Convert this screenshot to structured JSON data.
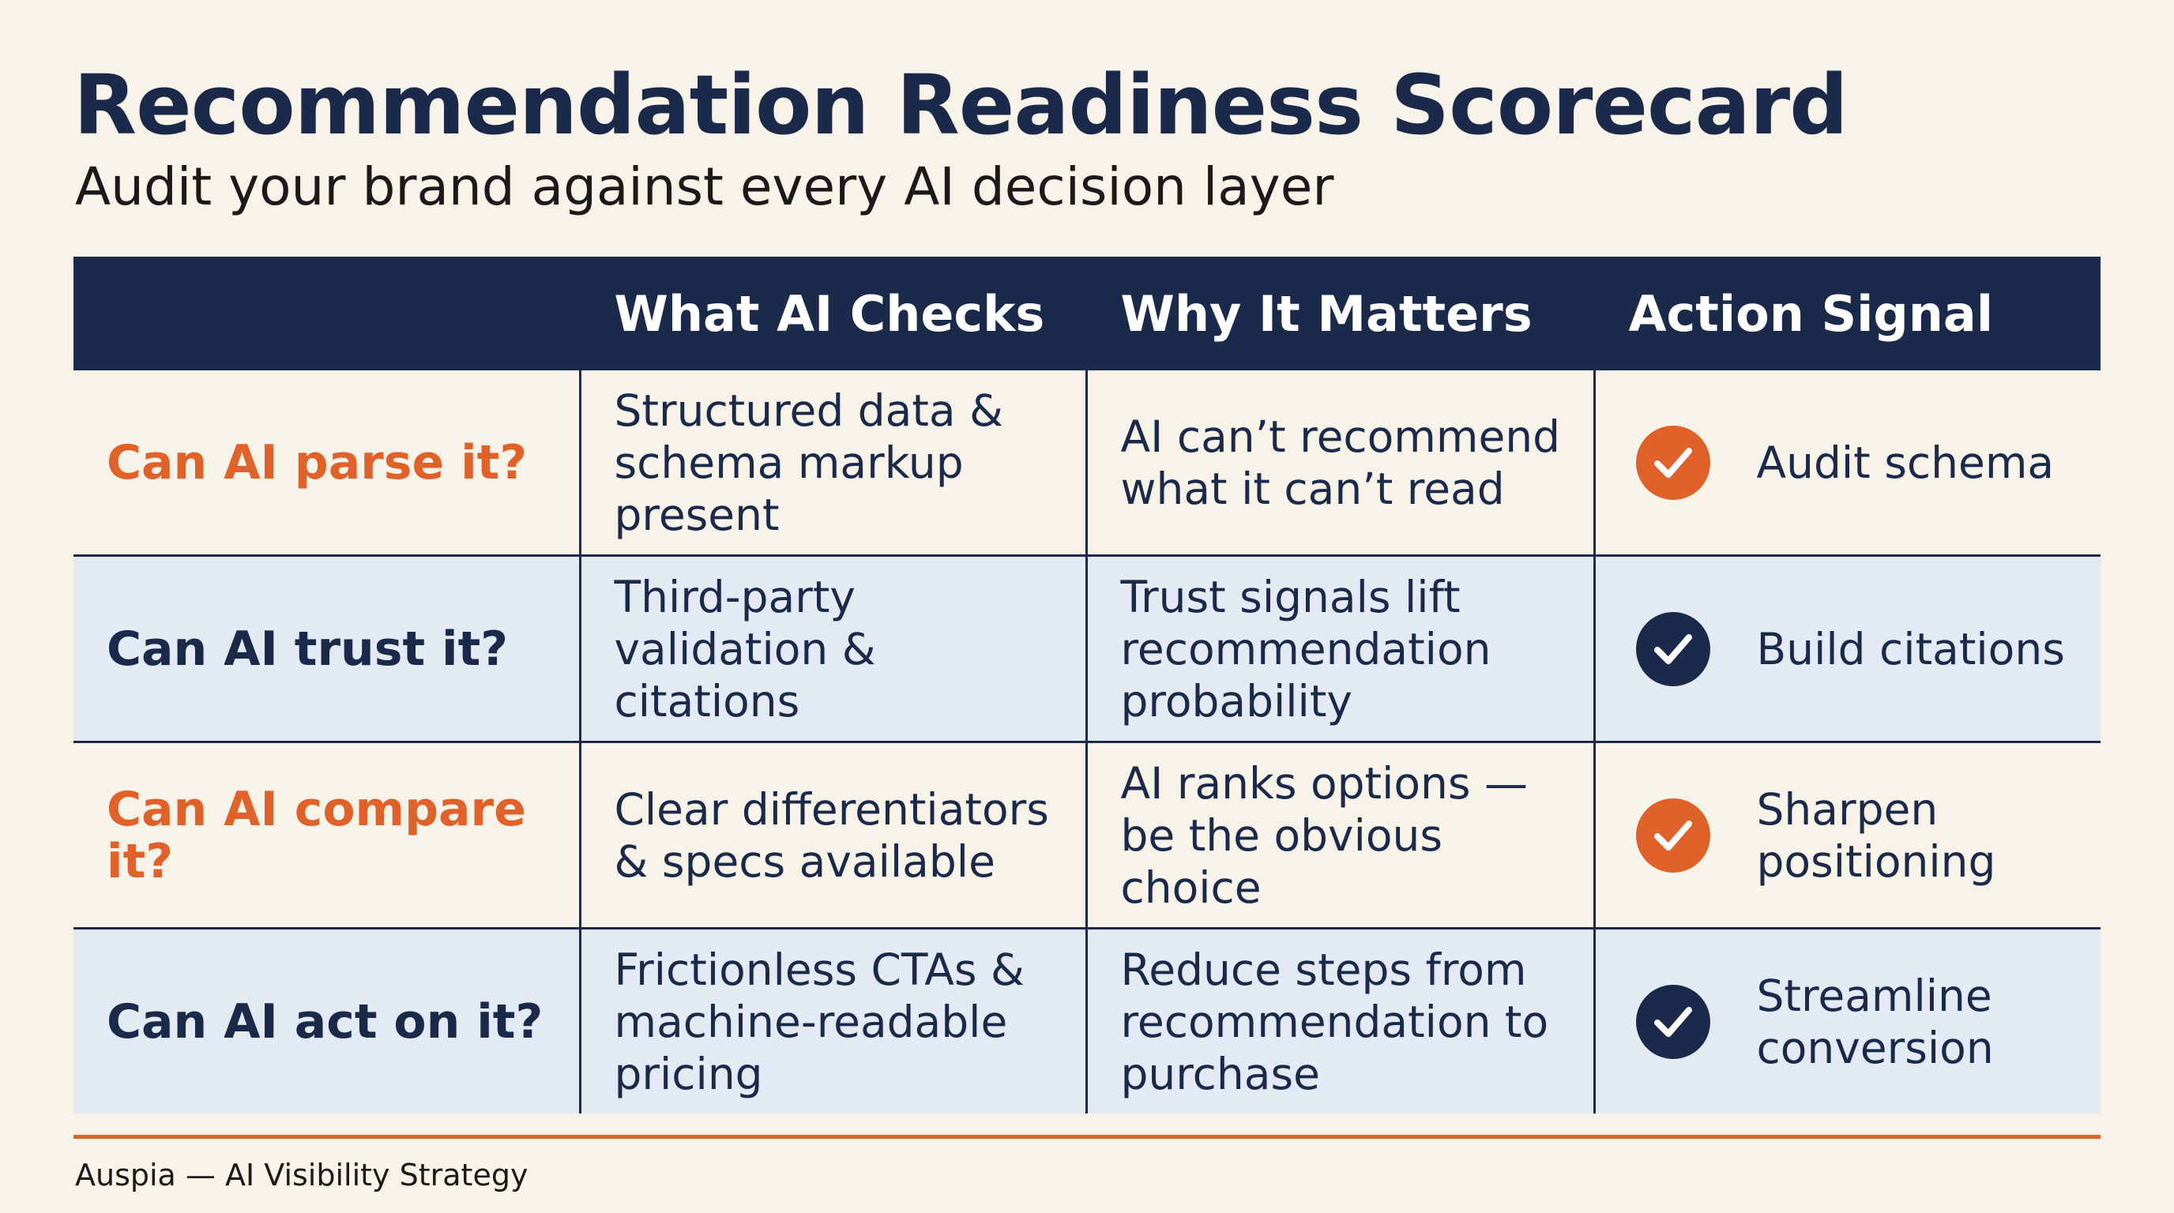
{
  "header": {
    "title": "Recommendation Readiness Scorecard",
    "subtitle": "Audit your brand against every AI decision layer"
  },
  "table": {
    "columns": [
      "What AI Checks",
      "Why It Matters",
      "Action Signal"
    ],
    "rows": [
      {
        "label": "Can AI parse it?",
        "checks": "Structured data & schema markup present",
        "matters": "AI can’t recommend what it can’t read",
        "action": "Audit schema"
      },
      {
        "label": "Can AI trust it?",
        "checks": "Third-party validation & citations",
        "matters": "Trust signals lift recommendation probability",
        "action": "Build citations"
      },
      {
        "label": "Can AI compare it?",
        "checks": "Clear differentiators & specs available",
        "matters": "AI ranks options — be the obvious choice",
        "action": "Sharpen positioning"
      },
      {
        "label": "Can AI act on it?",
        "checks": "Frictionless CTAs & machine-readable pricing",
        "matters": "Reduce steps from recommendation to purchase",
        "action": "Streamline conversion"
      }
    ]
  },
  "footer": {
    "text": "Auspia — AI Visibility Strategy"
  }
}
